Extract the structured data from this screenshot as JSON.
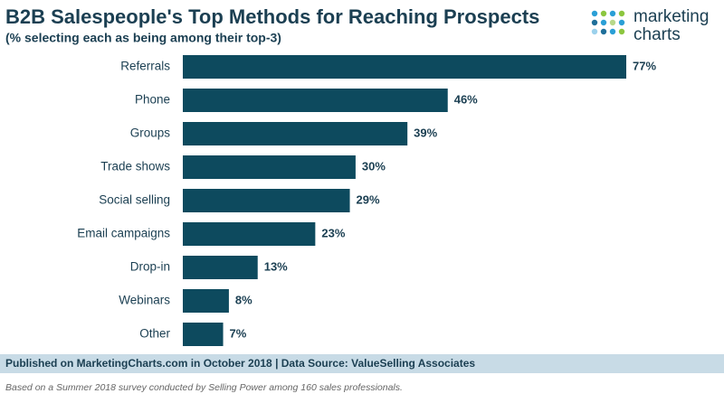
{
  "chart_data": {
    "type": "bar",
    "orientation": "horizontal",
    "title": "B2B Salespeople's Top Methods for Reaching Prospects",
    "subtitle": "(% selecting each as being among their top-3)",
    "categories": [
      "Referrals",
      "Phone",
      "Groups",
      "Trade shows",
      "Social selling",
      "Email campaigns",
      "Drop-in",
      "Webinars",
      "Other"
    ],
    "values": [
      77,
      46,
      39,
      30,
      29,
      23,
      13,
      8,
      7
    ],
    "value_labels": [
      "77%",
      "46%",
      "39%",
      "30%",
      "29%",
      "23%",
      "13%",
      "8%",
      "7%"
    ],
    "color": "#0d4a5e",
    "source": "Published on MarketingCharts.com in October 2018 | Data Source: ValueSelling Associates",
    "note": "Based on a Summer 2018 survey conducted by Selling Power among 160 sales professionals."
  },
  "logo": {
    "line1": "marketing",
    "line2": "charts"
  }
}
